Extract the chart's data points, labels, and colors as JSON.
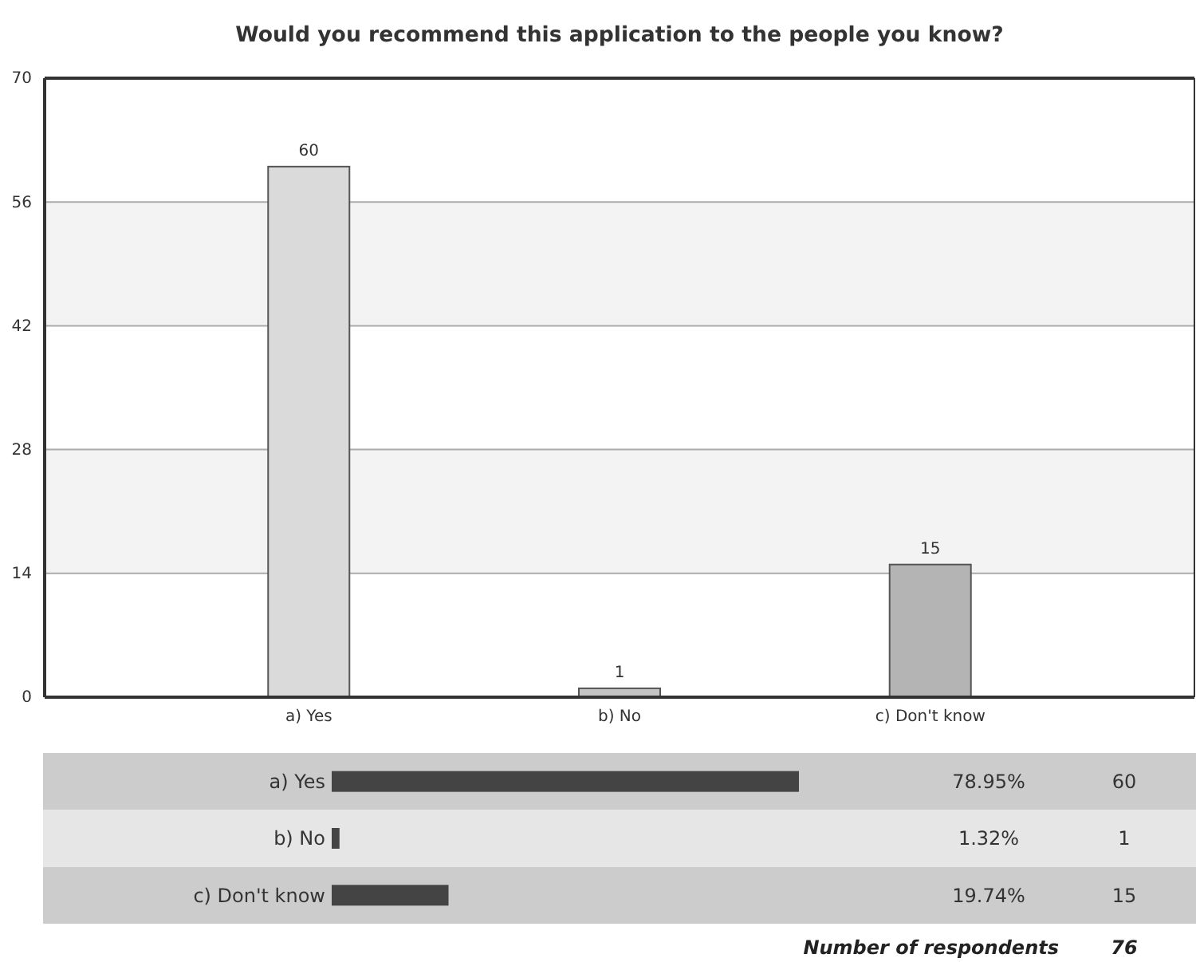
{
  "chart_data": [
    {
      "type": "bar",
      "title": "Would you recommend this application to the people you know?",
      "categories": [
        "a) Yes",
        "b) No",
        "c) Don't know"
      ],
      "values": [
        60,
        1,
        15
      ],
      "colors": [
        "#dadada",
        "#c4c4c4",
        "#b4b4b4"
      ],
      "ylim": [
        0,
        70
      ],
      "yticks": [
        0,
        14,
        28,
        42,
        56,
        70
      ],
      "grid": "y",
      "data_labels": true
    },
    {
      "type": "bar",
      "orientation": "horizontal",
      "categories": [
        "a) Yes",
        "b) No",
        "c) Don't know"
      ],
      "values": [
        78.95,
        1.32,
        19.74
      ],
      "value_labels": [
        "78.95%",
        "1.32%",
        "19.74%"
      ],
      "color": "#444444",
      "tick_labels": "y",
      "annotations": [
        "60",
        "1",
        "15",
        "Number of respondents",
        "76"
      ]
    }
  ]
}
